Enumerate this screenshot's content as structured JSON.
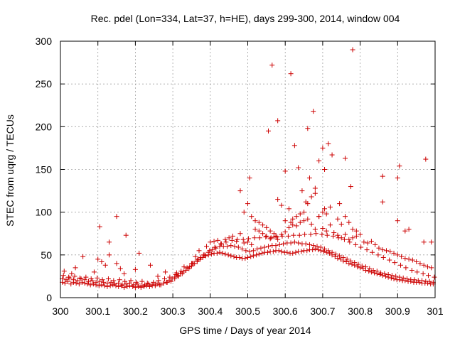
{
  "chart_data": {
    "type": "scatter",
    "title": "Rec. pdel (Lon=334, Lat=37, h=HE), days 299-300, 2014, window 004",
    "xlabel": "GPS time / Days of year 2014",
    "ylabel": "STEC from uqrg / TECUs",
    "xlim": [
      300,
      301
    ],
    "ylim": [
      0,
      300
    ],
    "x_ticks": [
      300,
      300.1,
      300.2,
      300.3,
      300.4,
      300.5,
      300.6,
      300.7,
      300.8,
      300.9,
      301
    ],
    "x_tick_labels": [
      "300",
      "300.1",
      "300.2",
      "300.3",
      "300.4",
      "300.5",
      "300.6",
      "300.7",
      "300.8",
      "300.9",
      "301"
    ],
    "y_ticks": [
      0,
      50,
      100,
      150,
      200,
      250,
      300
    ],
    "y_tick_labels": [
      "0",
      "50",
      "100",
      "150",
      "200",
      "250",
      "300"
    ],
    "grid": true,
    "marker": "+",
    "color": "#cc0000",
    "series": [
      {
        "name": "STEC",
        "x": [
          300.005,
          300.012,
          300.02,
          300.028,
          300.035,
          300.042,
          300.05,
          300.058,
          300.065,
          300.072,
          300.08,
          300.088,
          300.095,
          300.103,
          300.11,
          300.118,
          300.125,
          300.133,
          300.14,
          300.148,
          300.155,
          300.163,
          300.17,
          300.178,
          300.185,
          300.193,
          300.2,
          300.208,
          300.215,
          300.223,
          300.23,
          300.238,
          300.245,
          300.253,
          300.26,
          300.268,
          300.275,
          300.283,
          300.29,
          300.298,
          300.305,
          300.313,
          300.32,
          300.328,
          300.335,
          300.343,
          300.35,
          300.358,
          300.365,
          300.373,
          300.38,
          300.388,
          300.395,
          300.403,
          300.41,
          300.418,
          300.425,
          300.433,
          300.44,
          300.448,
          300.455,
          300.463,
          300.47,
          300.478,
          300.485,
          300.493,
          300.5,
          300.508,
          300.515,
          300.523,
          300.53,
          300.538,
          300.545,
          300.553,
          300.56,
          300.568,
          300.575,
          300.583,
          300.59,
          300.598,
          300.605,
          300.613,
          300.62,
          300.628,
          300.635,
          300.643,
          300.65,
          300.658,
          300.665,
          300.673,
          300.68,
          300.688,
          300.695,
          300.703,
          300.71,
          300.718,
          300.725,
          300.733,
          300.74,
          300.748,
          300.755,
          300.763,
          300.77,
          300.778,
          300.785,
          300.793,
          300.8,
          300.808,
          300.815,
          300.823,
          300.83,
          300.838,
          300.845,
          300.853,
          300.86,
          300.868,
          300.875,
          300.883,
          300.89,
          300.898,
          300.905,
          300.913,
          300.92,
          300.928,
          300.935,
          300.943,
          300.95,
          300.958,
          300.965,
          300.973,
          300.98,
          300.988,
          300.995,
          300.005,
          300.015,
          300.025,
          300.035,
          300.045,
          300.055,
          300.065,
          300.075,
          300.085,
          300.095,
          300.105,
          300.115,
          300.125,
          300.135,
          300.145,
          300.155,
          300.165,
          300.175,
          300.185,
          300.195,
          300.205,
          300.215,
          300.225,
          300.235,
          300.245,
          300.255,
          300.265,
          300.275,
          300.285,
          300.295,
          300.305,
          300.315,
          300.325,
          300.335,
          300.345,
          300.355,
          300.365,
          300.375,
          300.385,
          300.395,
          300.405,
          300.415,
          300.425,
          300.435,
          300.445,
          300.455,
          300.465,
          300.475,
          300.485,
          300.495,
          300.505,
          300.515,
          300.525,
          300.535,
          300.545,
          300.555,
          300.565,
          300.575,
          300.585,
          300.595,
          300.605,
          300.615,
          300.625,
          300.635,
          300.645,
          300.655,
          300.665,
          300.675,
          300.685,
          300.695,
          300.705,
          300.715,
          300.725,
          300.735,
          300.745,
          300.755,
          300.765,
          300.775,
          300.785,
          300.795,
          300.805,
          300.815,
          300.825,
          300.835,
          300.845,
          300.855,
          300.865,
          300.875,
          300.885,
          300.895,
          300.905,
          300.915,
          300.925,
          300.935,
          300.945,
          300.955,
          300.965,
          300.975,
          300.985,
          300.995,
          300.008,
          300.022,
          300.038,
          300.052,
          300.068,
          300.082,
          300.098,
          300.112,
          300.128,
          300.142,
          300.158,
          300.172,
          300.188,
          300.202,
          300.218,
          300.232,
          300.248,
          300.262,
          300.278,
          300.292,
          300.308,
          300.322,
          300.338,
          300.352,
          300.368,
          300.382,
          300.398,
          300.412,
          300.428,
          300.442,
          300.458,
          300.472,
          300.488,
          300.502,
          300.518,
          300.532,
          300.548,
          300.562,
          300.578,
          300.592,
          300.608,
          300.622,
          300.638,
          300.652,
          300.668,
          300.682,
          300.698,
          300.712,
          300.728,
          300.742,
          300.758,
          300.772,
          300.788,
          300.802,
          300.818,
          300.832,
          300.848,
          300.862,
          300.878,
          300.892,
          300.908,
          300.922,
          300.938,
          300.952,
          300.968,
          300.982,
          300.998,
          300.01,
          300.03,
          300.04,
          300.06,
          300.09,
          300.1,
          300.11,
          300.12,
          300.13,
          300.15,
          300.16,
          300.17,
          300.2,
          300.21,
          300.24,
          300.26,
          300.28,
          300.31,
          300.33,
          300.35,
          300.36,
          300.37,
          300.39,
          300.4,
          300.41,
          300.42,
          300.43,
          300.44,
          300.45,
          300.46,
          300.47,
          300.48,
          300.49,
          300.5,
          300.51,
          300.52,
          300.53,
          300.54,
          300.55,
          300.56,
          300.57,
          300.58,
          300.59,
          300.6,
          300.61,
          300.62,
          300.63,
          300.64,
          300.65,
          300.66,
          300.67,
          300.68,
          300.69,
          300.7,
          300.71,
          300.72,
          300.73,
          300.74,
          300.75,
          300.76,
          300.77,
          300.78,
          300.79,
          300.8,
          300.81,
          300.82,
          300.83,
          300.84,
          300.85,
          300.86,
          300.87,
          300.88,
          300.89,
          300.9,
          300.91,
          300.92,
          300.93,
          300.94,
          300.95,
          300.96,
          300.97,
          300.98,
          300.99,
          300.105,
          300.13,
          300.15,
          300.175,
          300.48,
          300.49,
          300.5,
          300.505,
          300.51,
          300.52,
          300.53,
          300.54,
          300.55,
          300.56,
          300.57,
          300.575,
          300.58,
          300.59,
          300.6,
          300.61,
          300.615,
          300.62,
          300.63,
          300.64,
          300.65,
          300.655,
          300.66,
          300.67,
          300.68,
          300.69,
          300.7,
          300.705,
          300.71,
          300.72,
          300.74,
          300.75,
          300.76,
          300.77,
          300.78,
          300.79,
          300.86,
          300.9,
          300.92,
          300.97,
          300.565,
          300.58,
          300.555,
          300.6,
          300.615,
          300.625,
          300.635,
          300.645,
          300.66,
          300.665,
          300.675,
          300.68,
          300.69,
          300.7,
          300.705,
          300.715,
          300.725,
          300.745,
          300.76,
          300.775,
          300.78,
          300.86,
          300.9,
          300.905,
          300.93,
          300.975,
          300.99
        ],
        "y": [
          18,
          17,
          19,
          16,
          18,
          17,
          16,
          18,
          17,
          16,
          15,
          16,
          15,
          14,
          15,
          14,
          13,
          14,
          15,
          14,
          13,
          14,
          12,
          13,
          14,
          13,
          12,
          13,
          12,
          13,
          14,
          13,
          15,
          14,
          16,
          15,
          17,
          18,
          20,
          22,
          24,
          26,
          28,
          30,
          32,
          34,
          37,
          40,
          42,
          45,
          47,
          49,
          50,
          51,
          52,
          52,
          53,
          52,
          51,
          50,
          49,
          48,
          47,
          47,
          46,
          46,
          47,
          48,
          49,
          50,
          51,
          52,
          53,
          53,
          54,
          54,
          55,
          55,
          54,
          53,
          53,
          52,
          52,
          53,
          54,
          54,
          55,
          55,
          56,
          56,
          57,
          56,
          55,
          54,
          53,
          52,
          50,
          48,
          46,
          45,
          43,
          42,
          40,
          39,
          38,
          36,
          35,
          34,
          32,
          31,
          30,
          29,
          28,
          27,
          26,
          25,
          24,
          23,
          22,
          21,
          21,
          20,
          20,
          19,
          19,
          18,
          18,
          18,
          17,
          17,
          17,
          16,
          16,
          22,
          21,
          23,
          21,
          20,
          22,
          21,
          19,
          20,
          18,
          19,
          18,
          17,
          18,
          16,
          17,
          15,
          16,
          17,
          15,
          16,
          14,
          15,
          16,
          14,
          16,
          15,
          17,
          18,
          19,
          22,
          25,
          28,
          32,
          36,
          40,
          44,
          47,
          50,
          53,
          56,
          58,
          60,
          60,
          60,
          61,
          60,
          59,
          57,
          55,
          54,
          55,
          57,
          58,
          59,
          60,
          61,
          61,
          62,
          63,
          64,
          64,
          65,
          64,
          63,
          63,
          62,
          61,
          60,
          59,
          57,
          55,
          53,
          51,
          49,
          47,
          45,
          43,
          41,
          39,
          37,
          36,
          34,
          32,
          31,
          29,
          28,
          27,
          26,
          25,
          24,
          23,
          22,
          21,
          21,
          20,
          20,
          19,
          19,
          18,
          26,
          24,
          25,
          23,
          24,
          22,
          23,
          21,
          22,
          20,
          21,
          19,
          20,
          18,
          19,
          17,
          18,
          20,
          22,
          24,
          27,
          31,
          35,
          40,
          45,
          50,
          55,
          59,
          63,
          65,
          67,
          68,
          68,
          69,
          70,
          70,
          71,
          70,
          71,
          72,
          72,
          73,
          73,
          74,
          74,
          75,
          74,
          73,
          72,
          70,
          68,
          65,
          62,
          59,
          56,
          53,
          50,
          47,
          44,
          41,
          38,
          35,
          32,
          30,
          28,
          26,
          24,
          31,
          28,
          35,
          48,
          30,
          45,
          42,
          38,
          50,
          40,
          34,
          28,
          33,
          52,
          38,
          25,
          30,
          29,
          36,
          40,
          48,
          55,
          60,
          65,
          66,
          67,
          63,
          68,
          70,
          72,
          66,
          75,
          64,
          65,
          62,
          80,
          78,
          75,
          72,
          69,
          71,
          68,
          74,
          77,
          82,
          85,
          84,
          88,
          90,
          92,
          86,
          80,
          95,
          81,
          78,
          85,
          76,
          73,
          70,
          74,
          68,
          70,
          72,
          74,
          65,
          64,
          66,
          62,
          58,
          56,
          55,
          54,
          52,
          50,
          48,
          46,
          45,
          44,
          42,
          40,
          38,
          36,
          35,
          83,
          65,
          95,
          73,
          125,
          100,
          110,
          140,
          95,
          90,
          88,
          85,
          82,
          78,
          75,
          72,
          115,
          108,
          90,
          104,
          88,
          92,
          95,
          98,
          100,
          112,
          110,
          118,
          122,
          95,
          100,
          104,
          98,
          106,
          92,
          86,
          95,
          88,
          80,
          78,
          112,
          90,
          78,
          65,
          272,
          207,
          195,
          148,
          262,
          178,
          152,
          125,
          198,
          140,
          218,
          128,
          160,
          175,
          150,
          180,
          167,
          110,
          163,
          130,
          290,
          142,
          140,
          154,
          80,
          162,
          65
        ]
      }
    ]
  }
}
